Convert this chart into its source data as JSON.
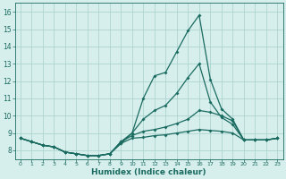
{
  "xlabel": "Humidex (Indice chaleur)",
  "ylabel": "",
  "xlim": [
    -0.5,
    23.5
  ],
  "ylim": [
    7.5,
    16.5
  ],
  "yticks": [
    8,
    9,
    10,
    11,
    12,
    13,
    14,
    15,
    16
  ],
  "xticks": [
    0,
    1,
    2,
    3,
    4,
    5,
    6,
    7,
    8,
    9,
    10,
    11,
    12,
    13,
    14,
    15,
    16,
    17,
    18,
    19,
    20,
    21,
    22,
    23
  ],
  "bg_color": "#d6eeec",
  "grid_color": "#aed4d0",
  "line_color": "#1a6b60",
  "line1_y": [
    8.7,
    8.5,
    8.3,
    8.2,
    7.9,
    7.8,
    7.7,
    7.7,
    7.8,
    8.4,
    9.0,
    11.0,
    12.3,
    12.5,
    13.7,
    14.9,
    15.8,
    12.1,
    10.4,
    9.8,
    8.6,
    8.6,
    8.6,
    8.7
  ],
  "line2_y": [
    8.7,
    8.5,
    8.3,
    8.2,
    7.9,
    7.8,
    7.7,
    7.7,
    7.8,
    8.5,
    9.0,
    9.8,
    10.3,
    10.6,
    11.3,
    12.2,
    13.0,
    10.8,
    9.9,
    9.5,
    8.6,
    8.6,
    8.6,
    8.7
  ],
  "line3_y": [
    8.7,
    8.5,
    8.3,
    8.2,
    7.9,
    7.8,
    7.7,
    7.7,
    7.8,
    8.5,
    8.85,
    9.1,
    9.2,
    9.35,
    9.55,
    9.8,
    10.3,
    10.2,
    10.0,
    9.7,
    8.6,
    8.6,
    8.6,
    8.7
  ],
  "line4_y": [
    8.7,
    8.5,
    8.3,
    8.2,
    7.9,
    7.8,
    7.7,
    7.7,
    7.8,
    8.4,
    8.7,
    8.75,
    8.85,
    8.9,
    9.0,
    9.1,
    9.2,
    9.15,
    9.1,
    9.0,
    8.6,
    8.6,
    8.6,
    8.7
  ]
}
